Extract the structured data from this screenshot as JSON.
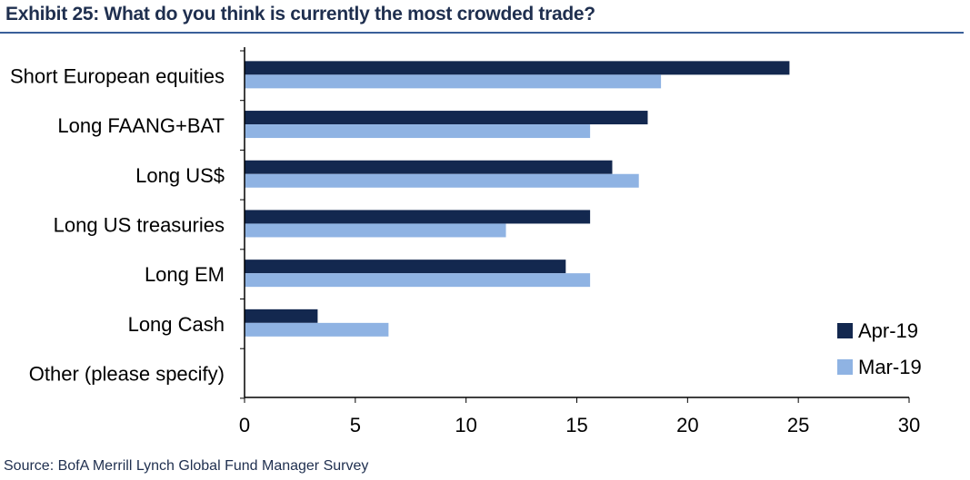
{
  "header": {
    "title": "Exhibit 25: What do you think is currently the most crowded trade?"
  },
  "footer": {
    "source": "Source:  BofA Merrill Lynch Global Fund Manager Survey"
  },
  "colors": {
    "apr": "#13284f",
    "mar": "#8fb3e3",
    "title": "#1f2f4f",
    "rule": "#3a5f99"
  },
  "chart_data": {
    "type": "bar",
    "orientation": "horizontal",
    "title": "What do you think is currently the most crowded trade?",
    "xlabel": "",
    "ylabel": "",
    "xlim": [
      0,
      30
    ],
    "xticks": [
      0,
      5,
      10,
      15,
      20,
      25,
      30
    ],
    "grid": false,
    "legend_position": "bottom-right",
    "categories": [
      "Short European equities",
      "Long FAANG+BAT",
      "Long US$",
      "Long US treasuries",
      "Long EM",
      "Long Cash",
      "Other (please specify)"
    ],
    "series": [
      {
        "name": "Apr-19",
        "color_key": "apr",
        "values": [
          24.6,
          18.2,
          16.6,
          15.6,
          14.5,
          3.3,
          0
        ]
      },
      {
        "name": "Mar-19",
        "color_key": "mar",
        "values": [
          18.8,
          15.6,
          17.8,
          11.8,
          15.6,
          6.5,
          0
        ]
      }
    ]
  }
}
